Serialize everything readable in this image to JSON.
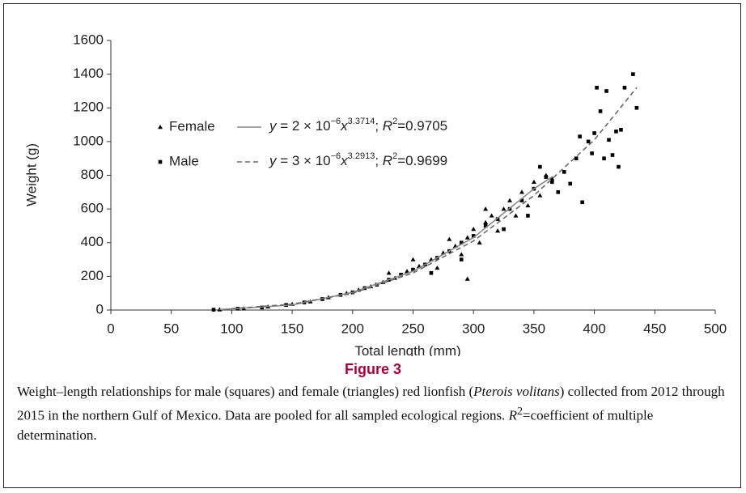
{
  "chart_data": {
    "type": "scatter",
    "xlabel": "Total length (mm)",
    "ylabel": "Weight (g)",
    "xlim": [
      0,
      500
    ],
    "ylim": [
      0,
      1600
    ],
    "xticks": [
      0,
      50,
      100,
      150,
      200,
      250,
      300,
      350,
      400,
      450,
      500
    ],
    "yticks": [
      0,
      200,
      400,
      600,
      800,
      1000,
      1200,
      1400,
      1600
    ],
    "series": [
      {
        "name": "Female",
        "color": "#000000",
        "marker": "triangle",
        "equation": [
          "y",
          " = 2 × 10",
          "−6",
          "x",
          "3.3714",
          "; ",
          "R",
          "2",
          "=0.9705"
        ],
        "x": [
          90,
          110,
          130,
          150,
          165,
          180,
          195,
          205,
          215,
          225,
          235,
          245,
          255,
          265,
          275,
          285,
          290,
          295,
          300,
          305,
          310,
          315,
          320,
          325,
          330,
          335,
          340,
          345,
          350,
          355,
          360,
          295,
          270,
          310,
          365,
          250,
          230,
          280
        ],
        "values": [
          3,
          8,
          20,
          35,
          50,
          75,
          100,
          120,
          140,
          165,
          190,
          230,
          260,
          300,
          340,
          380,
          330,
          430,
          480,
          400,
          520,
          560,
          470,
          600,
          650,
          560,
          700,
          620,
          760,
          680,
          800,
          185,
          250,
          600,
          780,
          300,
          220,
          420
        ]
      },
      {
        "name": "Male",
        "color": "#000000",
        "marker": "square",
        "equation": [
          "y",
          " = 3 × 10",
          "−6",
          "x",
          "3.2913",
          "; ",
          "R",
          "2",
          "=0.9699"
        ],
        "x": [
          85,
          105,
          125,
          145,
          160,
          175,
          190,
          200,
          210,
          220,
          230,
          240,
          250,
          260,
          270,
          280,
          290,
          300,
          310,
          320,
          330,
          340,
          350,
          355,
          360,
          365,
          370,
          375,
          380,
          385,
          390,
          395,
          400,
          402,
          405,
          408,
          410,
          412,
          415,
          418,
          420,
          422,
          425,
          432,
          435,
          388,
          398,
          345,
          325,
          290,
          265
        ],
        "values": [
          2,
          8,
          15,
          30,
          45,
          65,
          90,
          105,
          130,
          150,
          180,
          210,
          240,
          270,
          310,
          350,
          400,
          440,
          500,
          540,
          600,
          650,
          720,
          850,
          790,
          760,
          700,
          820,
          750,
          900,
          640,
          1000,
          1050,
          1320,
          1180,
          900,
          1300,
          1010,
          920,
          1060,
          850,
          1070,
          1320,
          1400,
          1200,
          1030,
          930,
          560,
          480,
          300,
          220
        ]
      }
    ],
    "fits": [
      {
        "name": "Female",
        "color": "#8a8a8a",
        "dash": false,
        "x": [
          90,
          150,
          200,
          250,
          300,
          350,
          365
        ],
        "values": [
          3,
          30,
          105,
          230,
          430,
          720,
          790
        ]
      },
      {
        "name": "Male",
        "color": "#6a6a6a",
        "dash": true,
        "x": [
          100,
          150,
          200,
          250,
          300,
          350,
          400,
          435
        ],
        "values": [
          8,
          35,
          100,
          220,
          410,
          680,
          1010,
          1320
        ]
      }
    ]
  },
  "figure_label": "Figure 3",
  "caption": [
    "Weight–length relationships for male (squares) and female (triangles) red lionfish (",
    "Pterois volitans",
    ") collected from 2012 through 2015 in the northern Gulf of Mexico. Data are pooled for all sampled ecological regions. ",
    "R",
    "2",
    "=coefficient of multiple determination."
  ]
}
